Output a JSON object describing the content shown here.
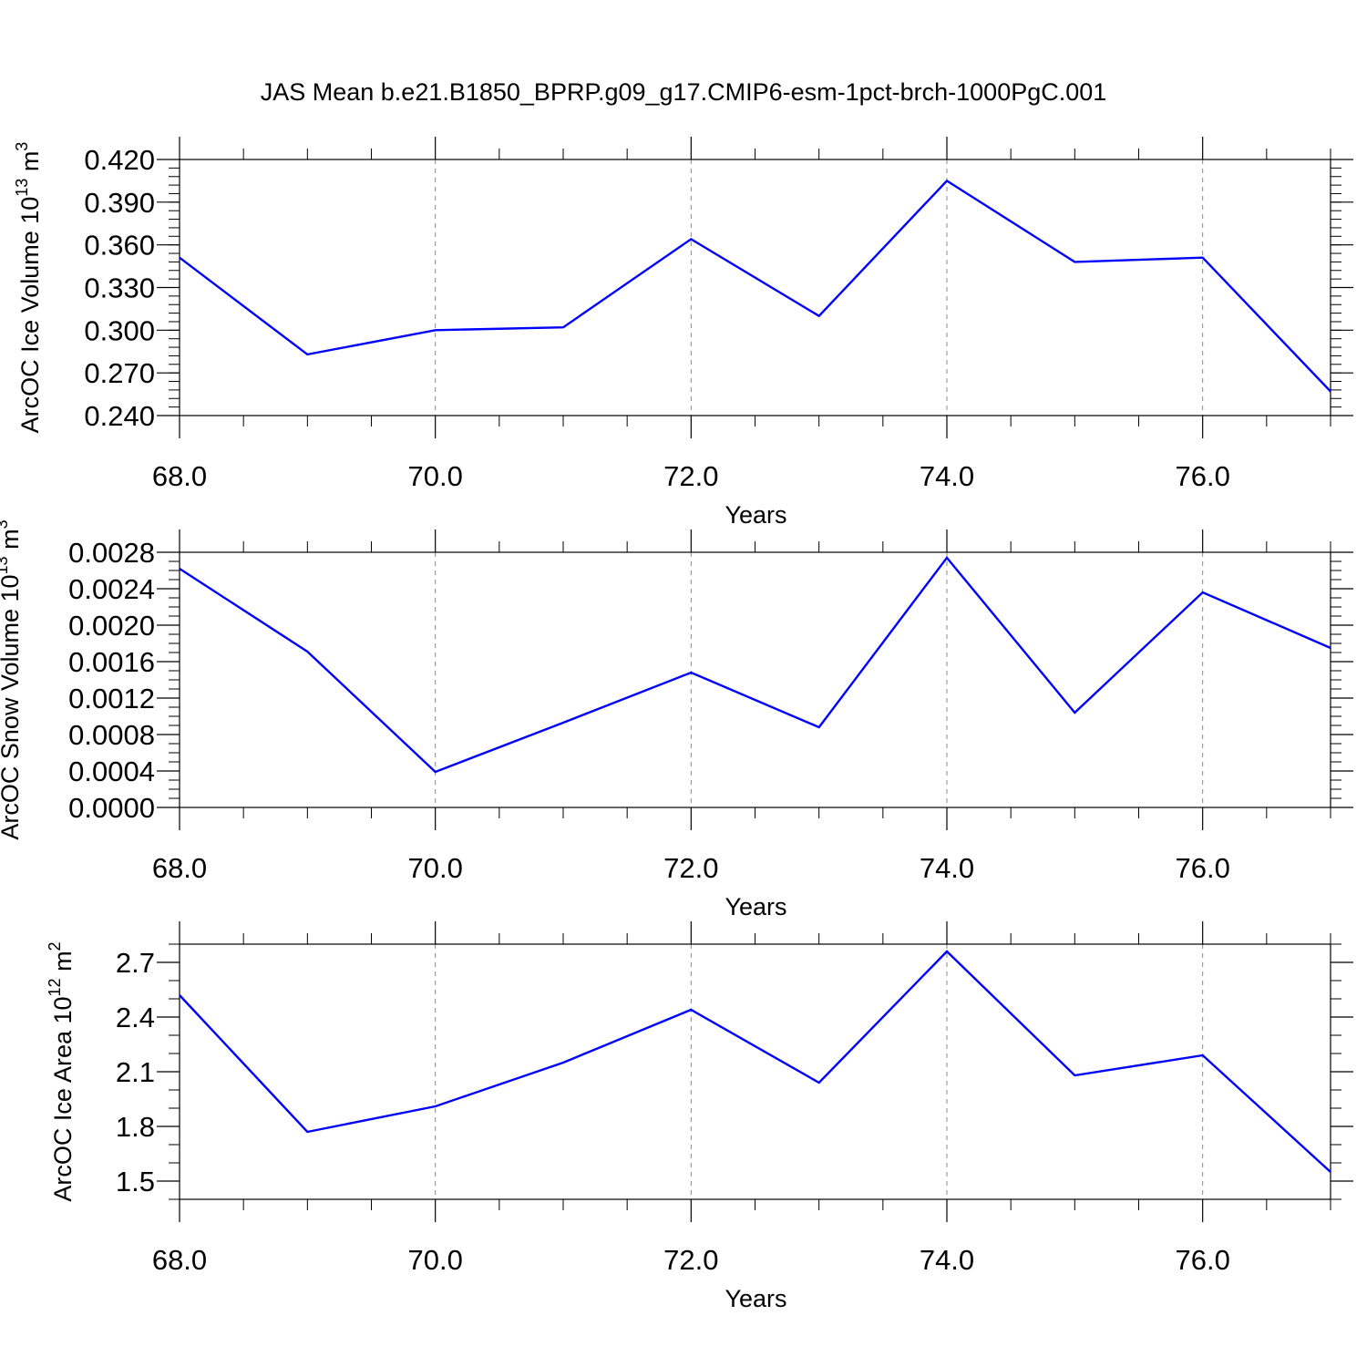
{
  "title": "JAS Mean b.e21.B1850_BPRP.g09_g17.CMIP6-esm-1pct-brch-1000PgC.001",
  "colors": {
    "line": "#0000ff",
    "axis": "#000000",
    "grid": "#888888"
  },
  "chart_data": [
    {
      "type": "line",
      "title": "",
      "xlabel": "Years",
      "ylabel": "ArcOC Ice Volume 10",
      "ylabel_sup": "13",
      "ylabel_unit": " m",
      "ylabel_unit_sup": "3",
      "xlim": [
        68,
        77
      ],
      "ylim": [
        0.24,
        0.42
      ],
      "grid": "vertical dashed at major x ticks",
      "x_ticks": [
        68,
        70,
        72,
        74,
        76
      ],
      "x_tick_labels": [
        "68.0",
        "70.0",
        "72.0",
        "74.0",
        "76.0"
      ],
      "y_ticks": [
        0.24,
        0.27,
        0.3,
        0.33,
        0.36,
        0.39,
        0.42
      ],
      "y_tick_labels": [
        "0.240",
        "0.270",
        "0.300",
        "0.330",
        "0.360",
        "0.390",
        "0.420"
      ],
      "y_minor_step": 0.006,
      "x": [
        68,
        69,
        70,
        71,
        72,
        73,
        74,
        75,
        76,
        77
      ],
      "series": [
        {
          "values": [
            0.351,
            0.283,
            0.3,
            0.302,
            0.364,
            0.31,
            0.405,
            0.348,
            0.351,
            0.257
          ]
        }
      ]
    },
    {
      "type": "line",
      "title": "",
      "xlabel": "Years",
      "ylabel": "ArcOC Snow Volume 10",
      "ylabel_sup": "13",
      "ylabel_unit": " m",
      "ylabel_unit_sup": "3",
      "xlim": [
        68,
        77
      ],
      "ylim": [
        0.0,
        0.0028
      ],
      "grid": "vertical dashed at major x ticks",
      "x_ticks": [
        68,
        70,
        72,
        74,
        76
      ],
      "x_tick_labels": [
        "68.0",
        "70.0",
        "72.0",
        "74.0",
        "76.0"
      ],
      "y_ticks": [
        0.0,
        0.0004,
        0.0008,
        0.0012,
        0.0016,
        0.002,
        0.0024,
        0.0028
      ],
      "y_tick_labels": [
        "0.0000",
        "0.0004",
        "0.0008",
        "0.0012",
        "0.0016",
        "0.0020",
        "0.0024",
        "0.0028"
      ],
      "y_minor_step": 0.0001,
      "x": [
        68,
        69,
        70,
        71,
        72,
        73,
        74,
        75,
        76,
        77
      ],
      "series": [
        {
          "values": [
            0.00262,
            0.00171,
            0.00039,
            0.00093,
            0.00148,
            0.00088,
            0.00274,
            0.00104,
            0.00236,
            0.00175
          ]
        }
      ]
    },
    {
      "type": "line",
      "title": "",
      "xlabel": "Years",
      "ylabel": "ArcOC Ice Area 10",
      "ylabel_sup": "12",
      "ylabel_unit": " m",
      "ylabel_unit_sup": "2",
      "xlim": [
        68,
        77
      ],
      "ylim": [
        1.4,
        2.8
      ],
      "grid": "vertical dashed at major x ticks",
      "x_ticks": [
        68,
        70,
        72,
        74,
        76
      ],
      "x_tick_labels": [
        "68.0",
        "70.0",
        "72.0",
        "74.0",
        "76.0"
      ],
      "y_ticks": [
        1.5,
        1.8,
        2.1,
        2.4,
        2.7
      ],
      "y_tick_labels": [
        "1.5",
        "1.8",
        "2.1",
        "2.4",
        "2.7"
      ],
      "y_minor_step": 0.1,
      "x": [
        68,
        69,
        70,
        71,
        72,
        73,
        74,
        75,
        76,
        77
      ],
      "series": [
        {
          "values": [
            2.52,
            1.77,
            1.91,
            2.15,
            2.44,
            2.04,
            2.76,
            2.08,
            2.19,
            1.55
          ]
        }
      ]
    }
  ]
}
